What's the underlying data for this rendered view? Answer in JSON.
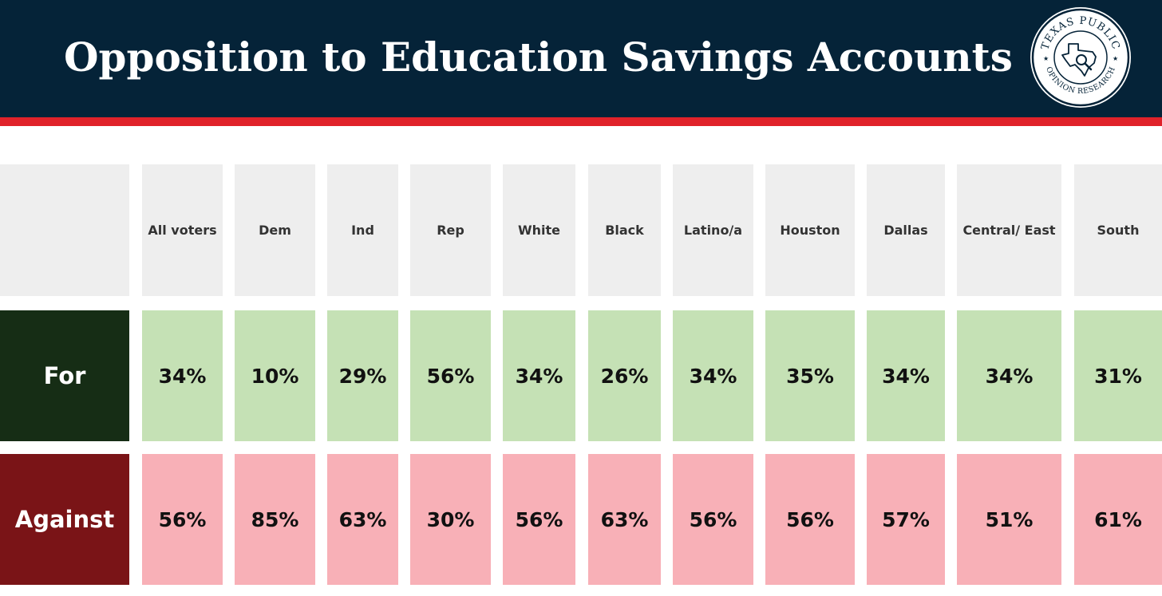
{
  "title": "Opposition to Education Savings Accounts",
  "logo": {
    "icon": "texas-map-magnifier-seal",
    "text_top": "TEXAS PUBLIC",
    "text_bottom": "OPINION RESEARCH"
  },
  "colors": {
    "header_bg": "#052338",
    "accent_red": "#e0222a",
    "for_label_bg": "#162d15",
    "against_label_bg": "#7a1417",
    "for_cell_bg": "#c5e1b5",
    "against_cell_bg": "#f8b0b7",
    "column_header_bg": "#eeeeee"
  },
  "chart_data": {
    "type": "table",
    "title": "Opposition to Education Savings Accounts",
    "columns": [
      "All voters",
      "Dem",
      "Ind",
      "Rep",
      "White",
      "Black",
      "Latino/a",
      "Houston",
      "Dallas",
      "Central/ East",
      "South"
    ],
    "rows": [
      {
        "label": "For",
        "values": [
          "34%",
          "10%",
          "29%",
          "56%",
          "34%",
          "26%",
          "34%",
          "35%",
          "34%",
          "34%",
          "31%"
        ]
      },
      {
        "label": "Against",
        "values": [
          "56%",
          "85%",
          "63%",
          "30%",
          "56%",
          "63%",
          "56%",
          "56%",
          "57%",
          "51%",
          "61%"
        ]
      }
    ]
  }
}
